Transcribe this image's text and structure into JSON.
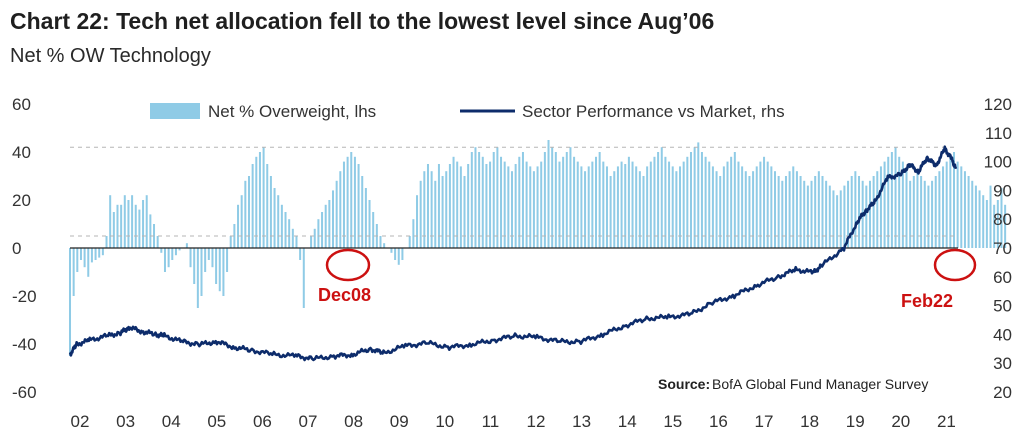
{
  "header": {
    "title": "Chart 22: Tech net allocation fell to the lowest level since Aug’06",
    "subtitle": "Net % OW Technology"
  },
  "chart_data": {
    "type": "bar+line",
    "title": "Chart 22: Tech net allocation fell to the lowest level since Aug’06",
    "subtitle": "Net % OW Technology",
    "x_tick_labels": [
      "02",
      "03",
      "04",
      "05",
      "06",
      "07",
      "08",
      "09",
      "10",
      "11",
      "12",
      "13",
      "14",
      "15",
      "16",
      "17",
      "18",
      "19",
      "20",
      "21"
    ],
    "y_left": {
      "ticks": [
        60,
        40,
        20,
        0,
        -20,
        -40,
        -60
      ],
      "range": [
        -60,
        60
      ]
    },
    "y_right": {
      "ticks": [
        120,
        110,
        100,
        90,
        80,
        70,
        60,
        50,
        40,
        30,
        20
      ],
      "range": [
        20,
        120
      ]
    },
    "reference_lines_left": [
      42,
      5
    ],
    "grid": false,
    "legend": {
      "position": "top",
      "entries": [
        "Net % Overweight, lhs",
        "Sector Performance vs Market, rhs"
      ]
    },
    "colors": {
      "bars": "#8fcbe6",
      "line": "#0d2c6b",
      "annotation": "#cc1111"
    },
    "annotations": [
      {
        "label": "Dec08",
        "x": 2008.95,
        "y_left": -7
      },
      {
        "label": "Feb22",
        "x": 2022.1,
        "y_left": -7
      }
    ],
    "source": {
      "label": "Source:",
      "text": "BofA Global Fund Manager Survey"
    },
    "series": [
      {
        "name": "Net % Overweight, lhs",
        "type": "bar",
        "axis": "left",
        "x_start": 2001.85,
        "step": 0.0833,
        "values": [
          -45,
          -20,
          -10,
          -5,
          -8,
          -12,
          -6,
          -5,
          -4,
          -3,
          5,
          22,
          15,
          18,
          18,
          22,
          20,
          22,
          18,
          16,
          20,
          22,
          14,
          10,
          5,
          -2,
          -10,
          -8,
          -5,
          -3,
          -1,
          0,
          2,
          -8,
          -15,
          -25,
          -20,
          -10,
          -5,
          -8,
          -15,
          -18,
          -20,
          -10,
          5,
          10,
          18,
          22,
          28,
          30,
          35,
          38,
          40,
          42,
          35,
          30,
          25,
          22,
          18,
          15,
          12,
          8,
          5,
          -5,
          -25,
          0,
          5,
          8,
          12,
          15,
          18,
          20,
          24,
          28,
          32,
          36,
          38,
          40,
          38,
          35,
          30,
          25,
          20,
          15,
          10,
          5,
          2,
          0,
          -2,
          -5,
          -7,
          -5,
          0,
          5,
          12,
          22,
          28,
          32,
          35,
          32,
          28,
          35,
          30,
          32,
          35,
          38,
          36,
          34,
          30,
          35,
          40,
          42,
          40,
          38,
          35,
          36,
          40,
          42,
          38,
          36,
          34,
          32,
          35,
          38,
          40,
          36,
          34,
          32,
          34,
          36,
          40,
          45,
          42,
          40,
          36,
          38,
          40,
          42,
          38,
          36,
          34,
          32,
          34,
          36,
          38,
          40,
          36,
          34,
          30,
          32,
          34,
          36,
          35,
          38,
          36,
          34,
          32,
          30,
          34,
          36,
          38,
          40,
          42,
          38,
          36,
          34,
          32,
          34,
          36,
          38,
          40,
          42,
          44,
          40,
          38,
          36,
          34,
          32,
          30,
          34,
          36,
          38,
          40,
          36,
          34,
          32,
          30,
          32,
          34,
          36,
          38,
          36,
          34,
          32,
          30,
          28,
          30,
          32,
          34,
          32,
          30,
          28,
          26,
          28,
          30,
          32,
          30,
          28,
          26,
          24,
          22,
          24,
          26,
          28,
          30,
          32,
          30,
          28,
          26,
          28,
          30,
          32,
          34,
          36,
          38,
          40,
          42,
          38,
          36,
          32,
          28,
          30,
          32,
          30,
          28,
          26,
          28,
          30,
          32,
          34,
          36,
          38,
          40,
          36,
          34,
          32,
          30,
          28,
          26,
          24,
          22,
          20,
          26,
          18,
          20,
          25,
          18
        ]
      },
      {
        "name": "Sector Performance vs Market, rhs",
        "type": "line",
        "axis": "right",
        "points": [
          [
            2001.85,
            33
          ],
          [
            2002.0,
            36.5
          ],
          [
            2002.3,
            38
          ],
          [
            2002.7,
            39.5
          ],
          [
            2003.0,
            40.5
          ],
          [
            2003.2,
            42.5
          ],
          [
            2003.5,
            41
          ],
          [
            2003.8,
            40
          ],
          [
            2004.0,
            39.5
          ],
          [
            2004.4,
            37.5
          ],
          [
            2004.8,
            36.5
          ],
          [
            2005.2,
            37.5
          ],
          [
            2005.6,
            35.5
          ],
          [
            2006.0,
            34.5
          ],
          [
            2006.5,
            33
          ],
          [
            2007.0,
            32.5
          ],
          [
            2007.4,
            31.5
          ],
          [
            2007.9,
            32.5
          ],
          [
            2008.3,
            33
          ],
          [
            2008.7,
            35
          ],
          [
            2009.0,
            33.5
          ],
          [
            2009.5,
            36
          ],
          [
            2010.0,
            37
          ],
          [
            2010.5,
            35.5
          ],
          [
            2011.0,
            36.5
          ],
          [
            2011.5,
            38
          ],
          [
            2012.0,
            39.5
          ],
          [
            2012.5,
            39
          ],
          [
            2013.0,
            37.5
          ],
          [
            2013.5,
            37.5
          ],
          [
            2014.0,
            40
          ],
          [
            2014.5,
            43
          ],
          [
            2015.0,
            45.5
          ],
          [
            2015.5,
            46
          ],
          [
            2016.0,
            47
          ],
          [
            2016.5,
            51
          ],
          [
            2017.0,
            53.5
          ],
          [
            2017.5,
            57
          ],
          [
            2018.0,
            60
          ],
          [
            2018.4,
            62.5
          ],
          [
            2018.8,
            61.5
          ],
          [
            2019.0,
            64
          ],
          [
            2019.5,
            70
          ],
          [
            2019.8,
            79
          ],
          [
            2020.0,
            83
          ],
          [
            2020.2,
            86
          ],
          [
            2020.5,
            94.5
          ],
          [
            2020.8,
            95.5
          ],
          [
            2021.0,
            99
          ],
          [
            2021.2,
            96.5
          ],
          [
            2021.4,
            101.5
          ],
          [
            2021.6,
            98.5
          ],
          [
            2021.8,
            104.5
          ],
          [
            2021.95,
            101
          ],
          [
            2022.05,
            97.5
          ]
        ]
      }
    ]
  }
}
